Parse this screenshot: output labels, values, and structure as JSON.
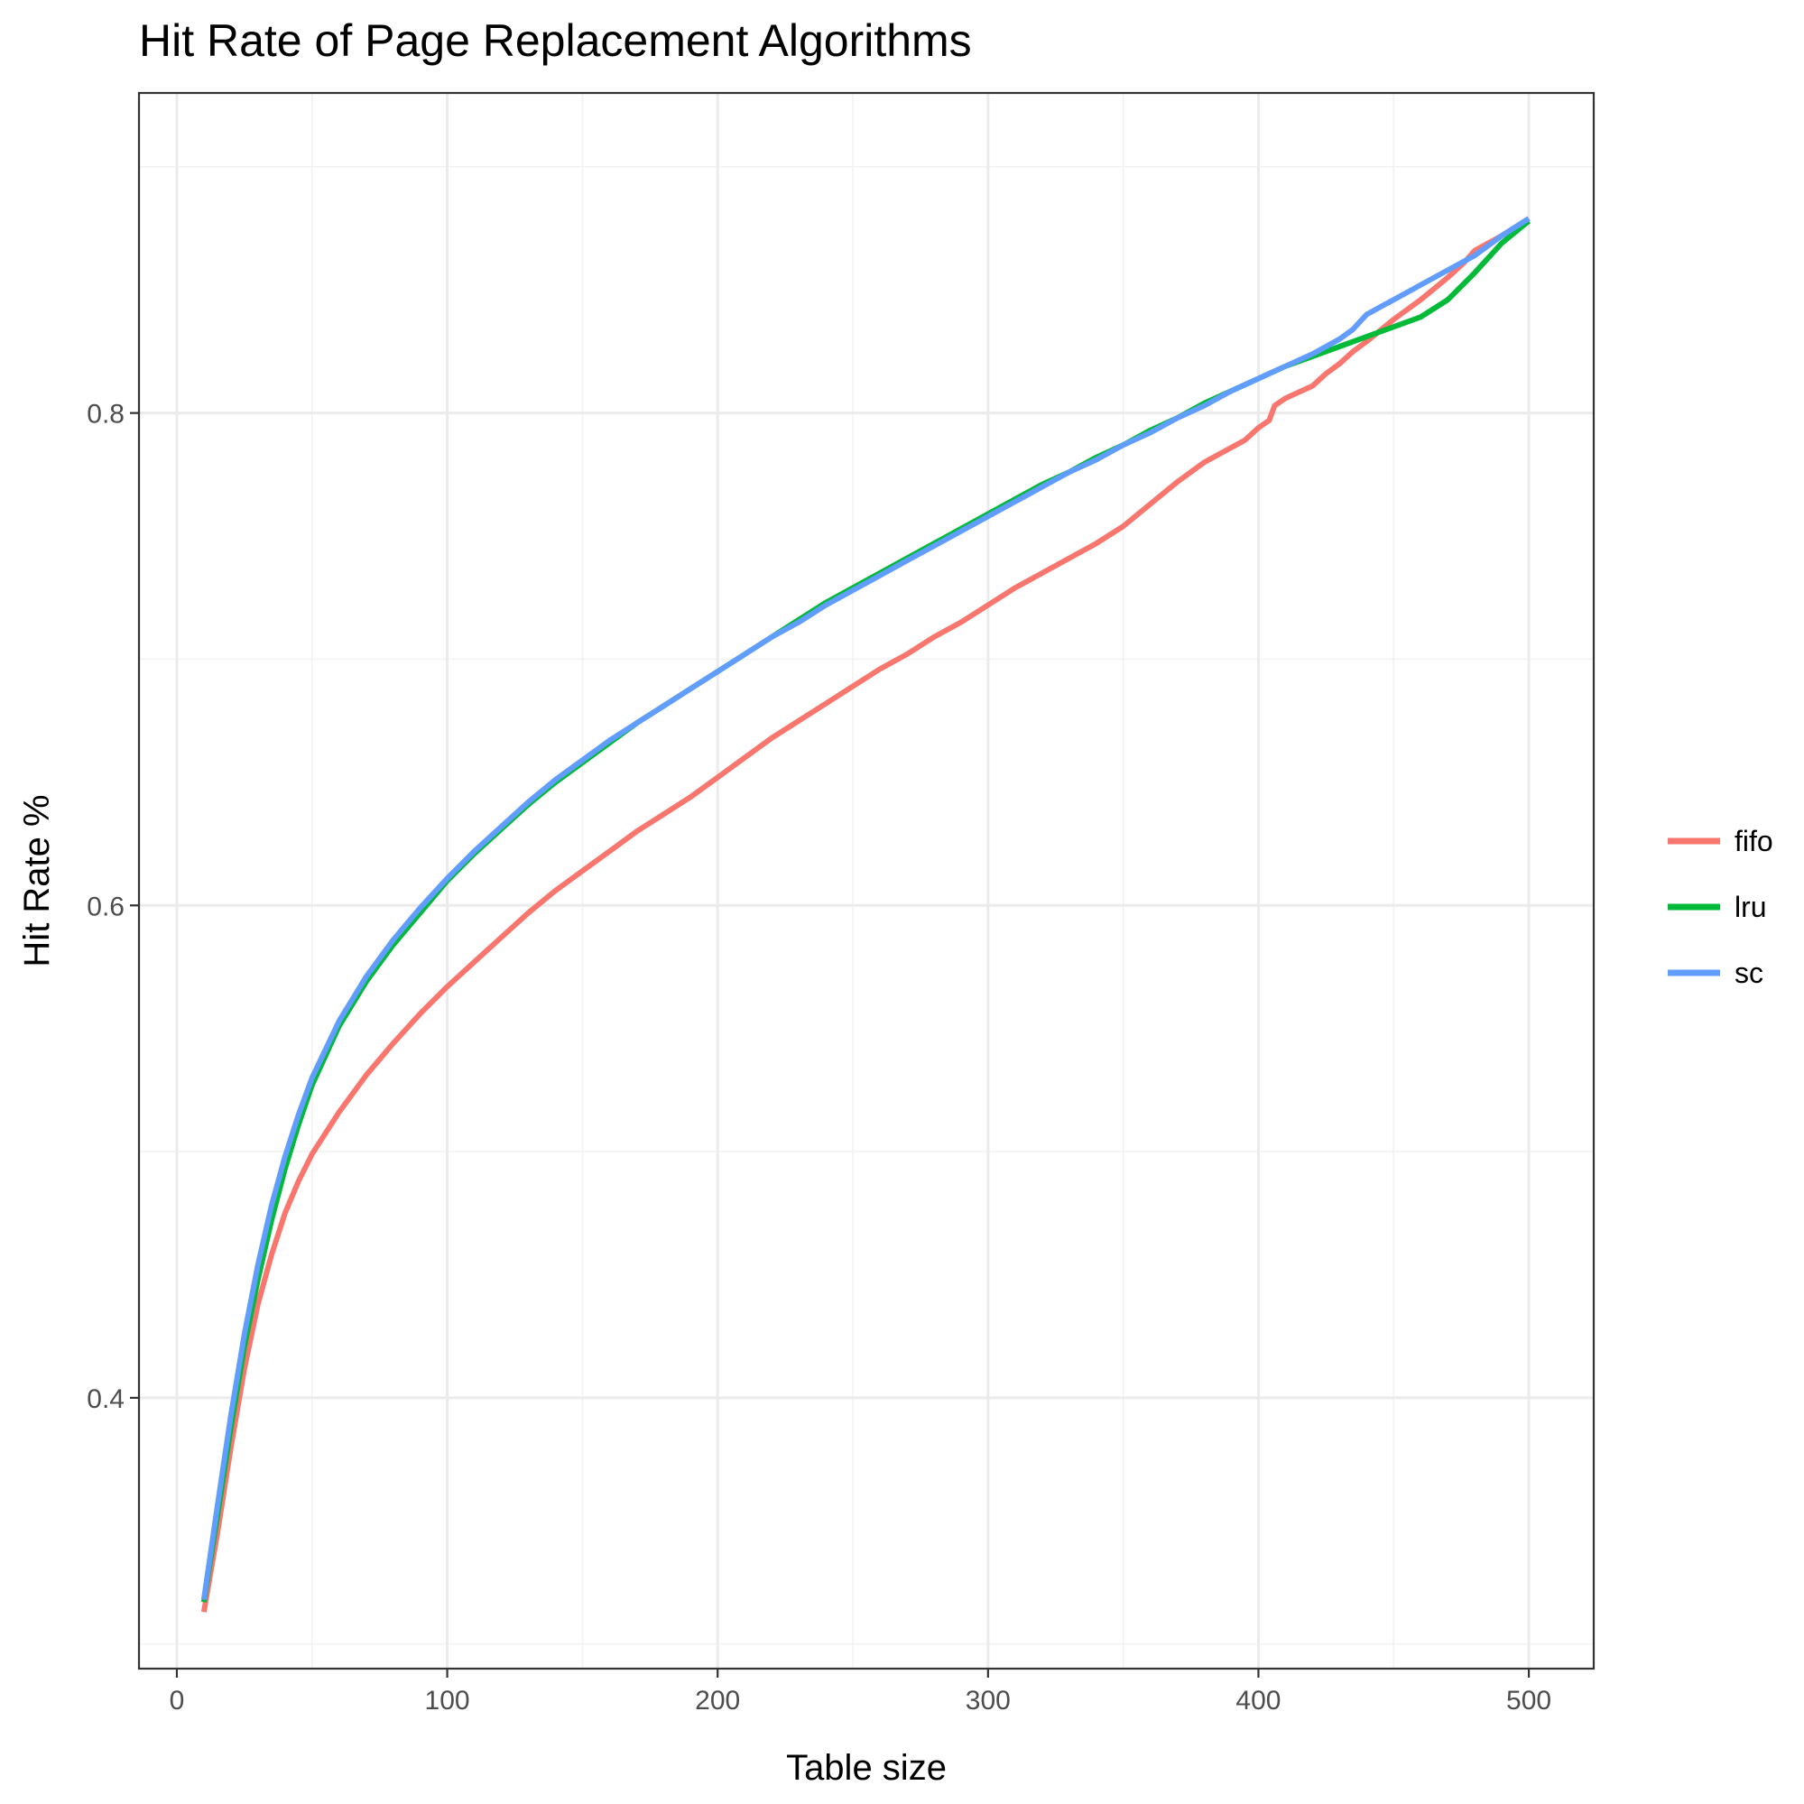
{
  "chart_data": {
    "type": "line",
    "title": "Hit Rate of Page Replacement Algorithms",
    "xlabel": "Table size",
    "ylabel": "Hit Rate %",
    "xlim": [
      -14,
      524
    ],
    "ylim": [
      0.29,
      0.93
    ],
    "x_ticks": [
      0,
      100,
      200,
      300,
      400,
      500
    ],
    "x_tick_labels": [
      "0",
      "100",
      "200",
      "300",
      "400",
      "500"
    ],
    "y_ticks": [
      0.4,
      0.6,
      0.8
    ],
    "y_tick_labels": [
      "0.4",
      "0.6",
      "0.8"
    ],
    "x_minor_ticks": [
      50,
      150,
      250,
      350,
      450
    ],
    "y_minor_ticks": [
      0.3,
      0.5,
      0.7,
      0.9
    ],
    "grid": true,
    "legend_position": "right",
    "series": [
      {
        "name": "fifo",
        "color": "#f8766d",
        "points": [
          [
            10,
            0.313
          ],
          [
            15,
            0.345
          ],
          [
            20,
            0.38
          ],
          [
            25,
            0.412
          ],
          [
            30,
            0.438
          ],
          [
            35,
            0.458
          ],
          [
            40,
            0.475
          ],
          [
            45,
            0.488
          ],
          [
            50,
            0.499
          ],
          [
            60,
            0.516
          ],
          [
            70,
            0.531
          ],
          [
            80,
            0.544
          ],
          [
            90,
            0.556
          ],
          [
            100,
            0.567
          ],
          [
            110,
            0.577
          ],
          [
            120,
            0.587
          ],
          [
            130,
            0.597
          ],
          [
            140,
            0.606
          ],
          [
            150,
            0.614
          ],
          [
            160,
            0.622
          ],
          [
            170,
            0.63
          ],
          [
            180,
            0.637
          ],
          [
            190,
            0.644
          ],
          [
            200,
            0.652
          ],
          [
            210,
            0.66
          ],
          [
            220,
            0.668
          ],
          [
            230,
            0.675
          ],
          [
            240,
            0.682
          ],
          [
            250,
            0.689
          ],
          [
            260,
            0.696
          ],
          [
            270,
            0.702
          ],
          [
            280,
            0.709
          ],
          [
            290,
            0.715
          ],
          [
            300,
            0.722
          ],
          [
            310,
            0.729
          ],
          [
            320,
            0.735
          ],
          [
            330,
            0.741
          ],
          [
            340,
            0.747
          ],
          [
            350,
            0.754
          ],
          [
            360,
            0.763
          ],
          [
            370,
            0.772
          ],
          [
            380,
            0.78
          ],
          [
            390,
            0.786
          ],
          [
            395,
            0.789
          ],
          [
            400,
            0.794
          ],
          [
            404,
            0.797
          ],
          [
            406,
            0.803
          ],
          [
            410,
            0.806
          ],
          [
            420,
            0.811
          ],
          [
            425,
            0.816
          ],
          [
            430,
            0.82
          ],
          [
            435,
            0.825
          ],
          [
            440,
            0.829
          ],
          [
            450,
            0.838
          ],
          [
            460,
            0.846
          ],
          [
            470,
            0.855
          ],
          [
            476,
            0.861
          ],
          [
            480,
            0.866
          ],
          [
            490,
            0.872
          ],
          [
            500,
            0.879
          ]
        ]
      },
      {
        "name": "lru",
        "color": "#00ba38",
        "points": [
          [
            10,
            0.317
          ],
          [
            15,
            0.352
          ],
          [
            20,
            0.388
          ],
          [
            25,
            0.421
          ],
          [
            30,
            0.448
          ],
          [
            35,
            0.472
          ],
          [
            40,
            0.493
          ],
          [
            45,
            0.511
          ],
          [
            50,
            0.527
          ],
          [
            60,
            0.551
          ],
          [
            70,
            0.569
          ],
          [
            80,
            0.584
          ],
          [
            90,
            0.597
          ],
          [
            100,
            0.61
          ],
          [
            110,
            0.621
          ],
          [
            120,
            0.631
          ],
          [
            130,
            0.641
          ],
          [
            140,
            0.65
          ],
          [
            150,
            0.658
          ],
          [
            160,
            0.666
          ],
          [
            170,
            0.674
          ],
          [
            180,
            0.681
          ],
          [
            190,
            0.688
          ],
          [
            200,
            0.695
          ],
          [
            210,
            0.702
          ],
          [
            220,
            0.709
          ],
          [
            230,
            0.716
          ],
          [
            240,
            0.723
          ],
          [
            250,
            0.729
          ],
          [
            260,
            0.735
          ],
          [
            270,
            0.741
          ],
          [
            280,
            0.747
          ],
          [
            290,
            0.753
          ],
          [
            300,
            0.759
          ],
          [
            310,
            0.765
          ],
          [
            320,
            0.771
          ],
          [
            330,
            0.776
          ],
          [
            340,
            0.782
          ],
          [
            350,
            0.787
          ],
          [
            360,
            0.793
          ],
          [
            370,
            0.798
          ],
          [
            380,
            0.804
          ],
          [
            390,
            0.809
          ],
          [
            400,
            0.814
          ],
          [
            410,
            0.819
          ],
          [
            420,
            0.823
          ],
          [
            430,
            0.827
          ],
          [
            440,
            0.831
          ],
          [
            450,
            0.835
          ],
          [
            460,
            0.839
          ],
          [
            470,
            0.846
          ],
          [
            480,
            0.857
          ],
          [
            490,
            0.869
          ],
          [
            500,
            0.878
          ]
        ]
      },
      {
        "name": "sc",
        "color": "#619cff",
        "points": [
          [
            10,
            0.318
          ],
          [
            15,
            0.356
          ],
          [
            20,
            0.393
          ],
          [
            25,
            0.426
          ],
          [
            30,
            0.454
          ],
          [
            35,
            0.478
          ],
          [
            40,
            0.498
          ],
          [
            45,
            0.515
          ],
          [
            50,
            0.53
          ],
          [
            60,
            0.553
          ],
          [
            70,
            0.571
          ],
          [
            80,
            0.586
          ],
          [
            90,
            0.599
          ],
          [
            100,
            0.611
          ],
          [
            110,
            0.622
          ],
          [
            120,
            0.632
          ],
          [
            130,
            0.642
          ],
          [
            140,
            0.651
          ],
          [
            150,
            0.659
          ],
          [
            160,
            0.667
          ],
          [
            170,
            0.674
          ],
          [
            180,
            0.681
          ],
          [
            190,
            0.688
          ],
          [
            200,
            0.695
          ],
          [
            210,
            0.702
          ],
          [
            220,
            0.709
          ],
          [
            230,
            0.715
          ],
          [
            240,
            0.722
          ],
          [
            250,
            0.728
          ],
          [
            260,
            0.734
          ],
          [
            270,
            0.74
          ],
          [
            280,
            0.746
          ],
          [
            290,
            0.752
          ],
          [
            300,
            0.758
          ],
          [
            310,
            0.764
          ],
          [
            320,
            0.77
          ],
          [
            330,
            0.776
          ],
          [
            340,
            0.781
          ],
          [
            350,
            0.787
          ],
          [
            360,
            0.792
          ],
          [
            370,
            0.798
          ],
          [
            380,
            0.803
          ],
          [
            390,
            0.809
          ],
          [
            400,
            0.814
          ],
          [
            410,
            0.819
          ],
          [
            420,
            0.824
          ],
          [
            430,
            0.83
          ],
          [
            435,
            0.834
          ],
          [
            440,
            0.84
          ],
          [
            445,
            0.843
          ],
          [
            450,
            0.846
          ],
          [
            460,
            0.852
          ],
          [
            470,
            0.858
          ],
          [
            480,
            0.864
          ],
          [
            490,
            0.872
          ],
          [
            500,
            0.879
          ]
        ]
      }
    ]
  }
}
